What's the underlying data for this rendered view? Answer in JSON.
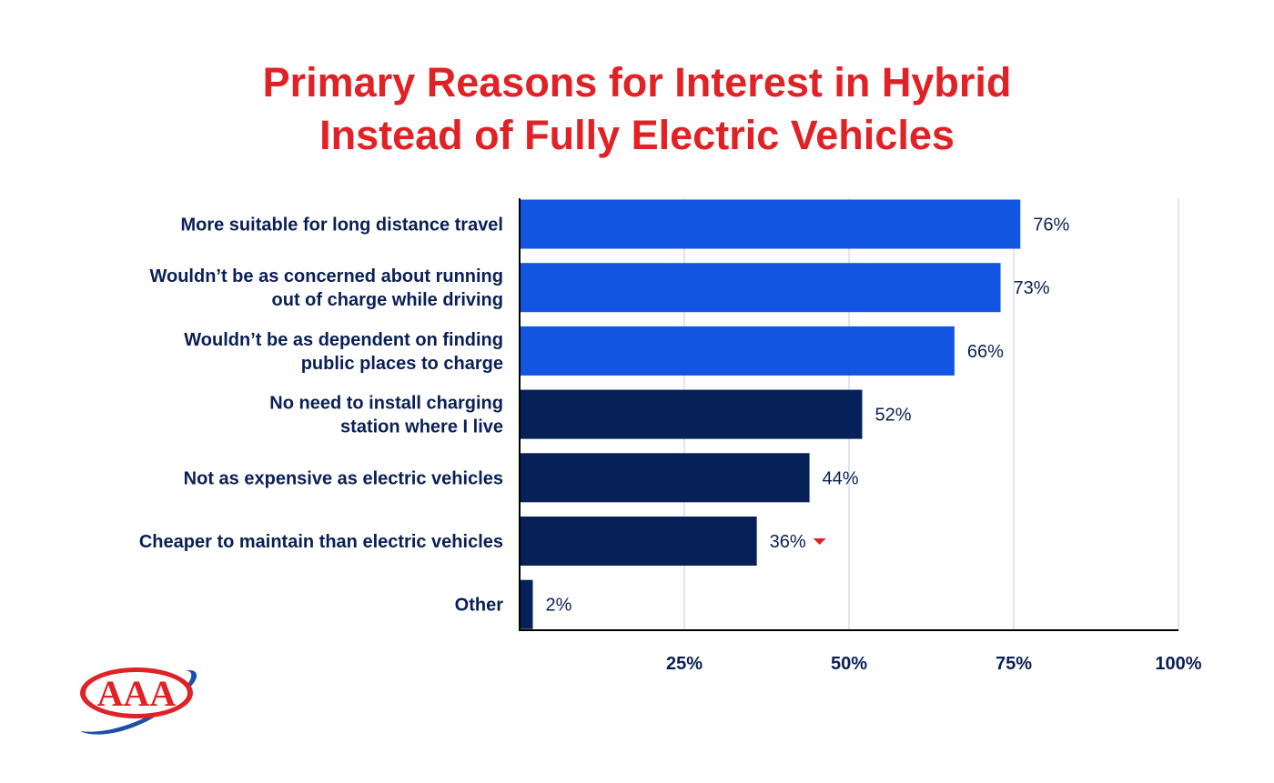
{
  "chart_data": {
    "type": "bar",
    "orientation": "horizontal",
    "title": "Primary Reasons for Interest in Hybrid Instead of Fully Electric Vehicles",
    "title_lines": [
      "Primary Reasons for Interest in Hybrid",
      "Instead of Fully Electric Vehicles"
    ],
    "categories": [
      [
        "More suitable for long distance travel"
      ],
      [
        "Wouldn’t be as concerned about running",
        "out of charge while driving"
      ],
      [
        "Wouldn’t be as dependent on finding",
        "public places to charge"
      ],
      [
        "No need to install charging",
        "station where I live"
      ],
      [
        "Not as expensive as electric vehicles"
      ],
      [
        "Cheaper to maintain than electric vehicles"
      ],
      [
        "Other"
      ]
    ],
    "values": [
      76,
      73,
      66,
      52,
      44,
      36,
      2
    ],
    "value_labels": [
      "76%",
      "73%",
      "66%",
      "52%",
      "44%",
      "36%",
      "2%"
    ],
    "highlight": [
      true,
      true,
      true,
      false,
      false,
      false,
      false
    ],
    "down_markers": [
      false,
      false,
      false,
      false,
      false,
      true,
      false
    ],
    "xlim": [
      0,
      100
    ],
    "xticks": [
      25,
      50,
      75,
      100
    ],
    "xtick_labels": [
      "25%",
      "50%",
      "75%",
      "100%"
    ],
    "grid": true,
    "colors": {
      "highlight": "#1155e0",
      "base": "#062058",
      "title": "#e02226",
      "text": "#0a1f55",
      "grid": "#e3e5ec",
      "marker": "#e02226"
    }
  },
  "logo": {
    "text": "AAA",
    "colors": {
      "red": "#e02226",
      "blue": "#1c4fa8"
    }
  }
}
